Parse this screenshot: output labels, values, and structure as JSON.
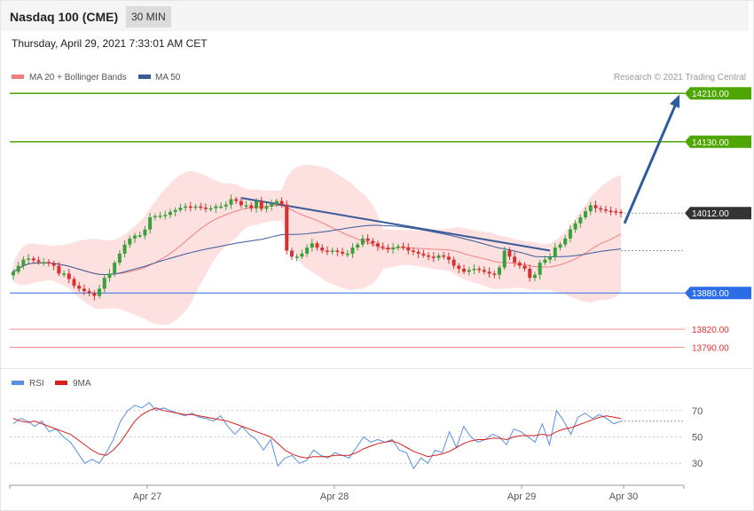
{
  "header": {
    "instrument": "Nasdaq 100 (CME)",
    "timeframe": "30 MIN"
  },
  "timestamp": "Thursday, April 29, 2021 7:33:01 AM CET",
  "legend": {
    "ma20": "MA 20 + Bollinger Bands",
    "ma50": "MA 50",
    "credit": "Research © 2021 Trading Central"
  },
  "rsi_legend": {
    "rsi": "RSI",
    "ma9": "9MA"
  },
  "colors": {
    "resistance": "#4ea600",
    "support": "#2b6de6",
    "last": "#333333",
    "minor_support": "#f09090",
    "ma20": "#f08080",
    "ma50": "#3a5a99",
    "bullish": "#3aa03a",
    "bearish": "#d63030",
    "bands": "#fde0e0"
  },
  "chart_data": [
    {
      "type": "candlestick",
      "title": "Nasdaq 100 (CME)",
      "x_ticks": [
        "Apr 27",
        "Apr 28",
        "Apr 29",
        "Apr 30"
      ],
      "ylim": [
        13760,
        14225
      ],
      "levels": [
        {
          "value": 14210.0,
          "label": "14210.00",
          "kind": "resistance"
        },
        {
          "value": 14130.0,
          "label": "14130.00",
          "kind": "resistance"
        },
        {
          "value": 14012.0,
          "label": "14012.00",
          "kind": "last"
        },
        {
          "value": 13880.0,
          "label": "13880.00",
          "kind": "support"
        },
        {
          "value": 13820.0,
          "label": "13820.00",
          "kind": "minor_support"
        },
        {
          "value": 13790.0,
          "label": "13790.00",
          "kind": "minor_support"
        }
      ],
      "close": [
        13915,
        13925,
        13935,
        13937,
        13934,
        13931,
        13931,
        13929,
        13925,
        13912,
        13912,
        13903,
        13892,
        13887,
        13883,
        13880,
        13875,
        13887,
        13905,
        13912,
        13930,
        13945,
        13960,
        13970,
        13975,
        13975,
        13985,
        14005,
        14007,
        14008,
        14009,
        14014,
        14017,
        14021,
        14023,
        14022,
        14023,
        14021,
        14020,
        14020,
        14023,
        14023,
        14026,
        14035,
        14032,
        14025,
        14025,
        14020,
        14032,
        14019,
        14023,
        14027,
        14032,
        14026,
        13950,
        13940,
        13940,
        13945,
        13955,
        13962,
        13955,
        13950,
        13949,
        13950,
        13948,
        13945,
        13945,
        13955,
        13960,
        13970,
        13966,
        13962,
        13957,
        13955,
        13952,
        13955,
        13957,
        13955,
        13950,
        13948,
        13945,
        13942,
        13940,
        13938,
        13942,
        13940,
        13935,
        13925,
        13920,
        13915,
        13918,
        13920,
        13918,
        13915,
        13912,
        13910,
        13922,
        13950,
        13940,
        13930,
        13925,
        13920,
        13905,
        13910,
        13930,
        13935,
        13940,
        13955,
        13960,
        13970,
        13985,
        13995,
        14005,
        14015,
        14025,
        14020,
        14018,
        14016,
        14015,
        14014,
        14012
      ],
      "ma20_last": 13985,
      "ma50_last": 13950,
      "series": [
        {
          "name": "MA 20 + Bollinger Bands"
        },
        {
          "name": "MA 50"
        }
      ]
    },
    {
      "type": "line",
      "yticks": [
        70,
        50,
        30
      ],
      "ylim": [
        18,
        82
      ],
      "series": [
        {
          "name": "RSI",
          "values": [
            60,
            64,
            62,
            58,
            62,
            54,
            56,
            50,
            46,
            38,
            30,
            33,
            30,
            38,
            48,
            62,
            70,
            74,
            72,
            76,
            70,
            72,
            70,
            68,
            66,
            68,
            65,
            64,
            62,
            66,
            58,
            52,
            58,
            52,
            48,
            40,
            48,
            28,
            34,
            36,
            30,
            32,
            40,
            36,
            34,
            38,
            36,
            34,
            42,
            50,
            46,
            48,
            46,
            48,
            40,
            38,
            26,
            34,
            30,
            40,
            38,
            54,
            42,
            58,
            50,
            46,
            48,
            52,
            50,
            44,
            56,
            54,
            50,
            46,
            60,
            44,
            70,
            62,
            52,
            65,
            68,
            64,
            67,
            64,
            60,
            62
          ]
        },
        {
          "name": "9MA",
          "values": [
            64,
            62,
            61,
            62,
            60,
            58,
            56,
            54,
            52,
            48,
            44,
            40,
            37,
            36,
            40,
            46,
            54,
            62,
            67,
            70,
            72,
            70,
            69,
            68,
            67,
            67,
            66,
            65,
            64,
            63,
            62,
            60,
            58,
            56,
            54,
            52,
            50,
            45,
            40,
            37,
            35,
            34,
            35,
            35,
            35,
            36,
            36,
            36,
            38,
            41,
            43,
            45,
            46,
            47,
            45,
            42,
            39,
            37,
            35,
            36,
            37,
            39,
            42,
            45,
            47,
            48,
            48,
            49,
            49,
            48,
            50,
            51,
            51,
            51,
            52,
            51,
            54,
            56,
            57,
            59,
            61,
            63,
            65,
            66,
            65,
            64
          ]
        }
      ]
    }
  ]
}
